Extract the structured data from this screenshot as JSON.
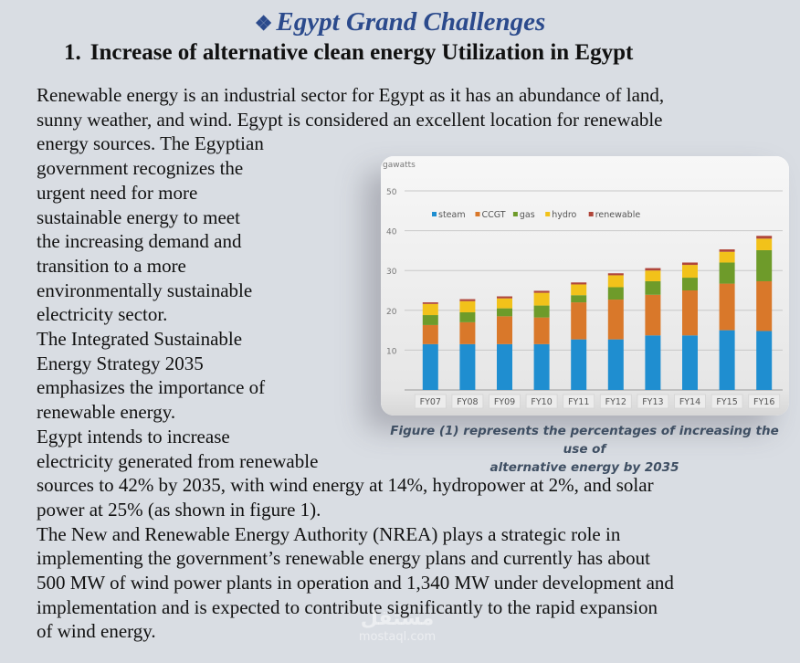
{
  "header": {
    "bullet": "❖",
    "title": "Egypt Grand Challenges",
    "section_number": "1.",
    "section_title": "Increase of alternative clean energy Utilization in Egypt"
  },
  "body_lines": [
    "Renewable energy is an industrial sector for Egypt as it has an abundance of land,",
    "sunny weather, and wind. Egypt is considered an excellent location for renewable",
    "energy sources. The Egyptian",
    "government recognizes the",
    "urgent need for more",
    "sustainable energy to meet",
    "the increasing demand and",
    "transition to a more",
    "environmentally sustainable",
    "electricity sector.",
    "The Integrated Sustainable",
    "Energy Strategy 2035",
    "emphasizes the importance of",
    "renewable energy.",
    "Egypt intends to increase",
    "electricity generated from renewable",
    "sources to 42% by 2035, with wind energy at 14%, hydropower at 2%, and solar",
    "power at 25% (as shown in figure 1).",
    "The New and Renewable Energy Authority (NREA) plays a strategic role in",
    "implementing the government’s renewable energy plans and currently has about",
    "500 MW of wind power plants in operation and 1,340 MW under development and",
    "implementation and is expected to contribute significantly to the rapid expansion",
    "of wind energy."
  ],
  "figure": {
    "caption_line1": "Figure (1) represents the percentages of increasing the use of",
    "caption_line2": "alternative energy by 2035"
  },
  "chart_data": {
    "type": "bar",
    "stacked": true,
    "ylabel": "gawatts",
    "ylim": [
      0,
      50
    ],
    "yticks": [
      10,
      20,
      30,
      40,
      50
    ],
    "grid": true,
    "legend_position": "top-left",
    "categories": [
      "FY07",
      "FY08",
      "FY09",
      "FY10",
      "FY11",
      "FY12",
      "FY13",
      "FY14",
      "FY15",
      "FY16"
    ],
    "series": [
      {
        "name": "steam",
        "color": "#1f8ed0",
        "values": [
          11.5,
          11.5,
          11.5,
          11.5,
          12.7,
          12.7,
          13.7,
          13.7,
          15,
          14.8
        ]
      },
      {
        "name": "CCGT",
        "color": "#d9782a",
        "values": [
          4.8,
          5.5,
          7,
          6.7,
          9.3,
          10,
          10.2,
          11.3,
          11.7,
          12.5
        ]
      },
      {
        "name": "gas",
        "color": "#6e9b2a",
        "values": [
          2.5,
          2.5,
          2,
          3,
          1.8,
          3.1,
          3.4,
          3.2,
          5.3,
          7.8
        ]
      },
      {
        "name": "hydro",
        "color": "#f2c21a",
        "values": [
          2.8,
          2.8,
          2.5,
          3.2,
          2.7,
          3,
          2.7,
          3.2,
          2.7,
          2.9
        ]
      },
      {
        "name": "renewable",
        "color": "#b0463a",
        "values": [
          0.4,
          0.5,
          0.5,
          0.5,
          0.5,
          0.5,
          0.6,
          0.6,
          0.6,
          0.7
        ]
      }
    ]
  },
  "watermark": {
    "logo": "مستقل",
    "url": "mostaql.com"
  }
}
